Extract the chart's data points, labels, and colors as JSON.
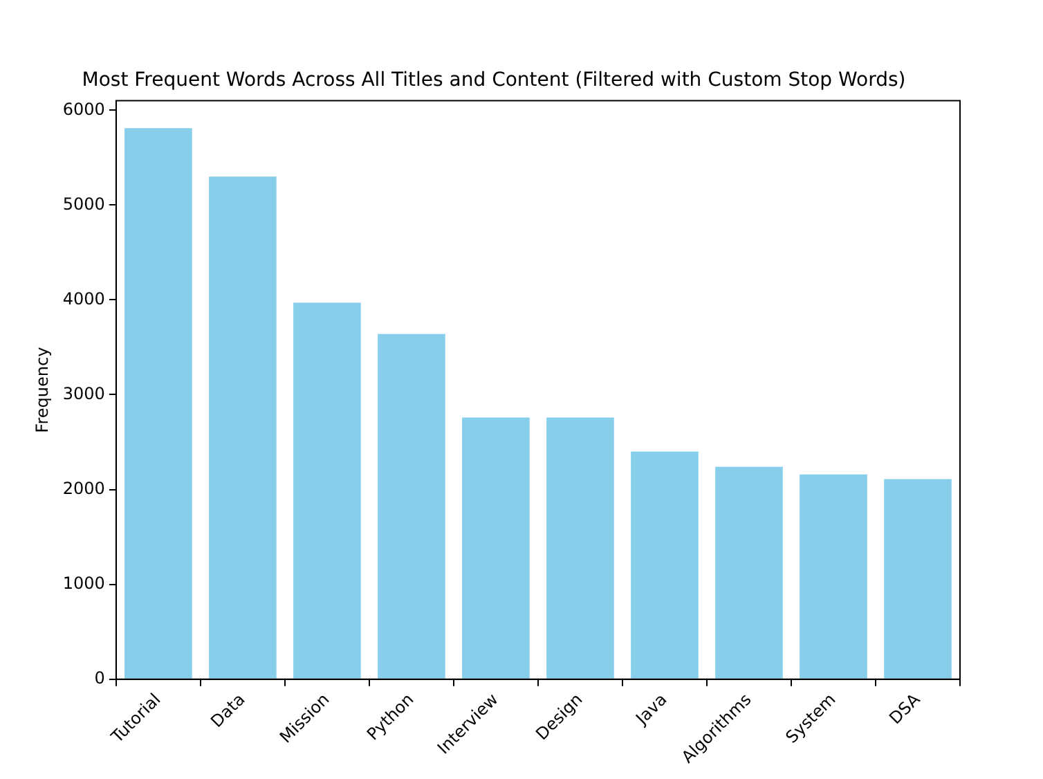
{
  "chart_data": {
    "type": "bar",
    "title": "Most Frequent Words Across All Titles and Content (Filtered with Custom Stop Words)",
    "ylabel": "Frequency",
    "categories": [
      "Tutorial",
      "Data",
      "Mission",
      "Python",
      "Interview",
      "Design",
      "Java",
      "Algorithms",
      "System",
      "DSA"
    ],
    "values": [
      5810,
      5300,
      3970,
      3640,
      2760,
      2760,
      2400,
      2240,
      2160,
      2110
    ],
    "color": "#87ceeb",
    "ylim": [
      0,
      6100
    ],
    "yticks": [
      0,
      1000,
      2000,
      3000,
      4000,
      5000,
      6000
    ],
    "grid": false,
    "legend": false
  }
}
